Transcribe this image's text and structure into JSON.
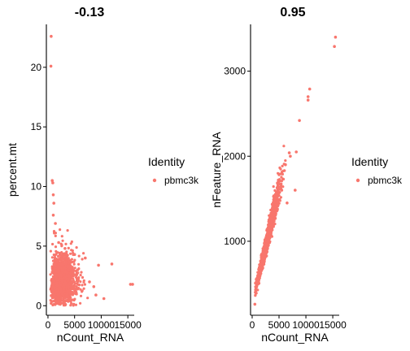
{
  "chart_data": [
    {
      "type": "scatter",
      "title": "-0.13",
      "xlabel": "nCount_RNA",
      "ylabel": "percent.mt",
      "xlim": [
        -300,
        16200
      ],
      "ylim": [
        -0.8,
        23.6
      ],
      "xticks": [
        0,
        5000,
        10000,
        15000
      ],
      "xtick_labels": [
        "0",
        "5000",
        "10000",
        "15000"
      ],
      "yticks": [
        0,
        5,
        10,
        15,
        20
      ],
      "ytick_labels": [
        "0",
        "5",
        "10",
        "15",
        "20"
      ],
      "grid": false,
      "legend": {
        "title": "Identity",
        "items": [
          "pbmc3k"
        ],
        "position": "right"
      },
      "series": [
        {
          "name": "pbmc3k",
          "color": "#F8766D",
          "points": [
            [
              600,
              22.6
            ],
            [
              550,
              20.1
            ],
            [
              800,
              10.5
            ],
            [
              900,
              10.3
            ],
            [
              1000,
              9.3
            ],
            [
              1100,
              8.6
            ],
            [
              1000,
              7.6
            ],
            [
              1400,
              6.9
            ],
            [
              1200,
              6.1
            ],
            [
              2000,
              5.3
            ],
            [
              3200,
              4.8
            ],
            [
              5000,
              4.3
            ],
            [
              7000,
              4.0
            ],
            [
              9500,
              3.4
            ],
            [
              12000,
              3.5
            ],
            [
              7800,
              2.0
            ],
            [
              8600,
              1.6
            ],
            [
              15500,
              1.8
            ],
            [
              15900,
              1.8
            ],
            [
              9000,
              0.9
            ],
            [
              10500,
              0.6
            ],
            [
              600,
              0.2
            ],
            [
              1500,
              0.3
            ]
          ]
        }
      ]
    },
    {
      "type": "scatter",
      "title": "0.95",
      "xlabel": "nCount_RNA",
      "ylabel": "nFeature_RNA",
      "xlim": [
        -300,
        16200
      ],
      "ylim": [
        130,
        3550
      ],
      "xticks": [
        0,
        5000,
        10000,
        15000
      ],
      "xtick_labels": [
        "0",
        "5000",
        "10000",
        "15000"
      ],
      "yticks": [
        1000,
        2000,
        3000
      ],
      "ytick_labels": [
        "1000",
        "2000",
        "3000"
      ],
      "grid": false,
      "legend": {
        "title": "Identity",
        "items": [
          "pbmc3k"
        ],
        "position": "right"
      },
      "series": [
        {
          "name": "pbmc3k",
          "color": "#F8766D",
          "points": [
            [
              15500,
              3400
            ],
            [
              15300,
              3290
            ],
            [
              10700,
              2790
            ],
            [
              10400,
              2700
            ],
            [
              10400,
              2660
            ],
            [
              8800,
              2420
            ],
            [
              8200,
              2050
            ],
            [
              6900,
              2040
            ],
            [
              7100,
              2000
            ],
            [
              6200,
              1900
            ],
            [
              6000,
              1830
            ],
            [
              5800,
              1730
            ],
            [
              5500,
              1600
            ],
            [
              5100,
              1490
            ],
            [
              4700,
              1380
            ],
            [
              4300,
              1270
            ],
            [
              3800,
              1180
            ],
            [
              3200,
              1060
            ],
            [
              2700,
              960
            ],
            [
              2100,
              820
            ],
            [
              1600,
              700
            ],
            [
              1100,
              560
            ],
            [
              700,
              420
            ],
            [
              500,
              260
            ],
            [
              8000,
              1600
            ],
            [
              6500,
              1450
            ]
          ]
        }
      ]
    }
  ]
}
